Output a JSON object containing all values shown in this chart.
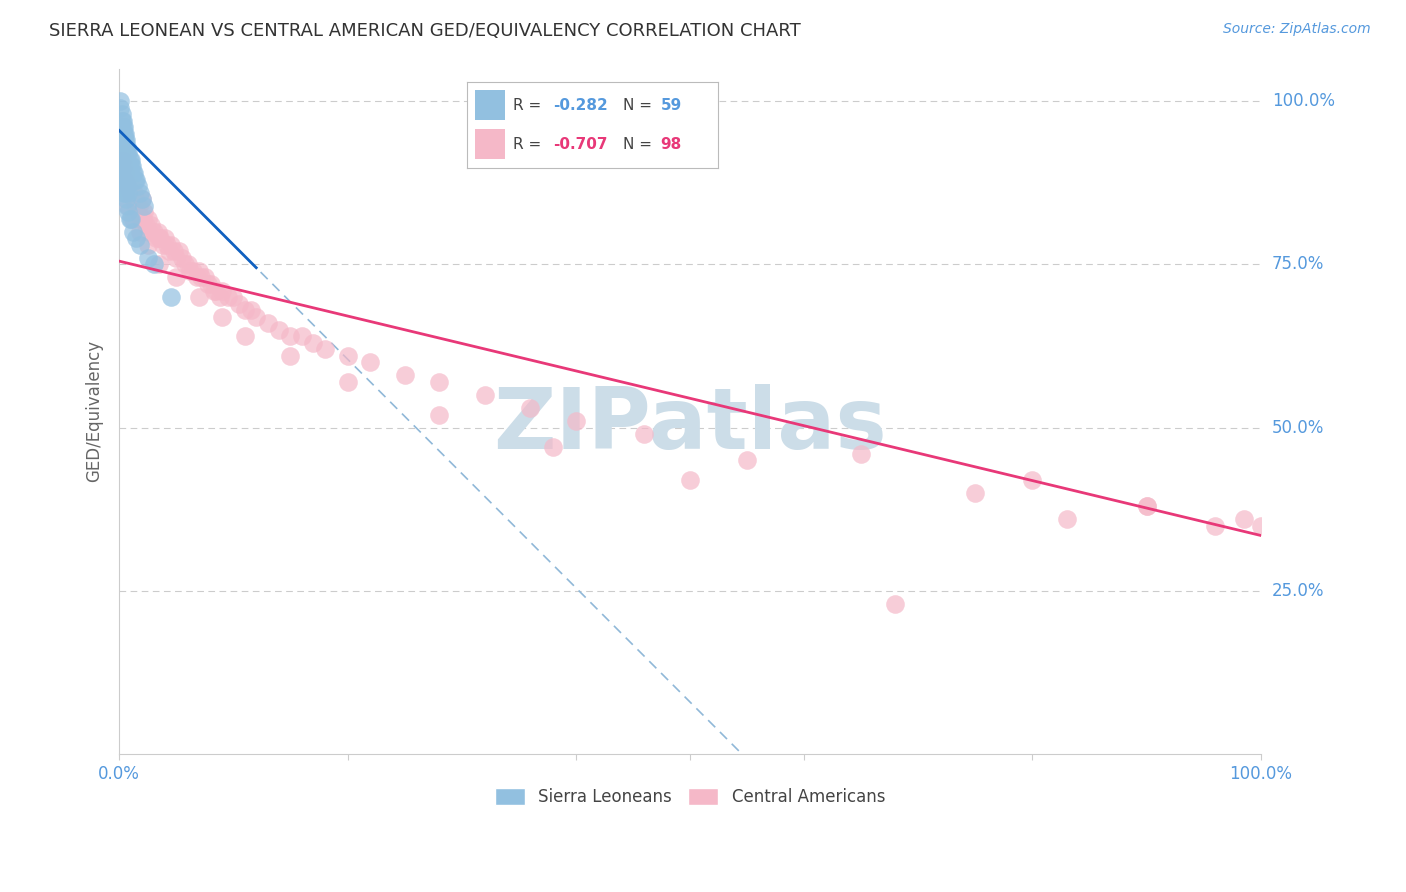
{
  "title": "SIERRA LEONEAN VS CENTRAL AMERICAN GED/EQUIVALENCY CORRELATION CHART",
  "source": "Source: ZipAtlas.com",
  "ylabel": "GED/Equivalency",
  "legend_blue_r": "R = -0.282",
  "legend_blue_n": "N = 59",
  "legend_pink_r": "R = -0.707",
  "legend_pink_n": "N = 98",
  "blue_scatter_x": [
    0.001,
    0.001,
    0.002,
    0.002,
    0.003,
    0.003,
    0.003,
    0.004,
    0.004,
    0.004,
    0.005,
    0.005,
    0.005,
    0.006,
    0.006,
    0.007,
    0.007,
    0.008,
    0.009,
    0.01,
    0.01,
    0.011,
    0.012,
    0.013,
    0.014,
    0.015,
    0.016,
    0.018,
    0.02,
    0.022,
    0.001,
    0.001,
    0.002,
    0.002,
    0.003,
    0.003,
    0.004,
    0.004,
    0.005,
    0.005,
    0.006,
    0.007,
    0.008,
    0.009,
    0.01,
    0.012,
    0.015,
    0.018,
    0.025,
    0.03,
    0.001,
    0.002,
    0.003,
    0.004,
    0.005,
    0.006,
    0.007,
    0.008,
    0.045
  ],
  "blue_scatter_y": [
    1.0,
    0.99,
    0.98,
    0.97,
    0.97,
    0.96,
    0.95,
    0.96,
    0.95,
    0.94,
    0.95,
    0.94,
    0.93,
    0.94,
    0.93,
    0.93,
    0.92,
    0.92,
    0.91,
    0.91,
    0.9,
    0.9,
    0.89,
    0.89,
    0.88,
    0.88,
    0.87,
    0.86,
    0.85,
    0.84,
    0.92,
    0.91,
    0.9,
    0.89,
    0.89,
    0.88,
    0.87,
    0.86,
    0.87,
    0.86,
    0.85,
    0.84,
    0.83,
    0.82,
    0.82,
    0.8,
    0.79,
    0.78,
    0.76,
    0.75,
    0.93,
    0.92,
    0.91,
    0.9,
    0.89,
    0.88,
    0.87,
    0.86,
    0.7
  ],
  "pink_scatter_x": [
    0.002,
    0.003,
    0.004,
    0.005,
    0.006,
    0.007,
    0.008,
    0.009,
    0.01,
    0.012,
    0.013,
    0.014,
    0.015,
    0.016,
    0.017,
    0.018,
    0.02,
    0.021,
    0.022,
    0.023,
    0.025,
    0.026,
    0.028,
    0.03,
    0.032,
    0.034,
    0.035,
    0.036,
    0.038,
    0.04,
    0.042,
    0.044,
    0.045,
    0.048,
    0.05,
    0.052,
    0.055,
    0.058,
    0.06,
    0.062,
    0.065,
    0.068,
    0.07,
    0.072,
    0.075,
    0.078,
    0.08,
    0.083,
    0.085,
    0.088,
    0.09,
    0.095,
    0.1,
    0.105,
    0.11,
    0.115,
    0.12,
    0.13,
    0.14,
    0.15,
    0.16,
    0.17,
    0.18,
    0.2,
    0.22,
    0.25,
    0.28,
    0.32,
    0.36,
    0.4,
    0.003,
    0.005,
    0.008,
    0.012,
    0.018,
    0.025,
    0.035,
    0.05,
    0.07,
    0.09,
    0.11,
    0.15,
    0.2,
    0.28,
    0.38,
    0.5,
    0.65,
    0.8,
    0.9,
    0.46,
    0.55,
    0.68,
    0.75,
    0.83,
    0.9,
    0.96,
    0.985,
    1.0
  ],
  "pink_scatter_y": [
    0.92,
    0.91,
    0.9,
    0.88,
    0.89,
    0.87,
    0.87,
    0.86,
    0.87,
    0.85,
    0.86,
    0.84,
    0.85,
    0.83,
    0.84,
    0.82,
    0.85,
    0.82,
    0.83,
    0.81,
    0.82,
    0.8,
    0.81,
    0.8,
    0.79,
    0.8,
    0.79,
    0.79,
    0.78,
    0.79,
    0.78,
    0.77,
    0.78,
    0.77,
    0.76,
    0.77,
    0.76,
    0.75,
    0.75,
    0.74,
    0.74,
    0.73,
    0.74,
    0.73,
    0.73,
    0.72,
    0.72,
    0.71,
    0.71,
    0.7,
    0.71,
    0.7,
    0.7,
    0.69,
    0.68,
    0.68,
    0.67,
    0.66,
    0.65,
    0.64,
    0.64,
    0.63,
    0.62,
    0.61,
    0.6,
    0.58,
    0.57,
    0.55,
    0.53,
    0.51,
    0.88,
    0.86,
    0.84,
    0.82,
    0.8,
    0.78,
    0.75,
    0.73,
    0.7,
    0.67,
    0.64,
    0.61,
    0.57,
    0.52,
    0.47,
    0.42,
    0.46,
    0.42,
    0.38,
    0.49,
    0.45,
    0.23,
    0.4,
    0.36,
    0.38,
    0.35,
    0.36,
    0.35
  ],
  "blue_line_intercept": 0.955,
  "blue_line_slope": -1.75,
  "pink_line_intercept": 0.755,
  "pink_line_slope": -0.42,
  "blue_color": "#92c0e0",
  "pink_color": "#f5b8c8",
  "blue_line_color": "#1060c0",
  "pink_line_color": "#e83878",
  "dashed_line_color": "#90b8d8",
  "title_color": "#333333",
  "axis_label_color": "#666666",
  "right_axis_color": "#5599dd",
  "background_color": "#ffffff",
  "grid_color": "#cccccc",
  "watermark_color": "#ccdde8",
  "xlim": [
    0.0,
    1.0
  ],
  "ylim": [
    0.0,
    1.05
  ]
}
